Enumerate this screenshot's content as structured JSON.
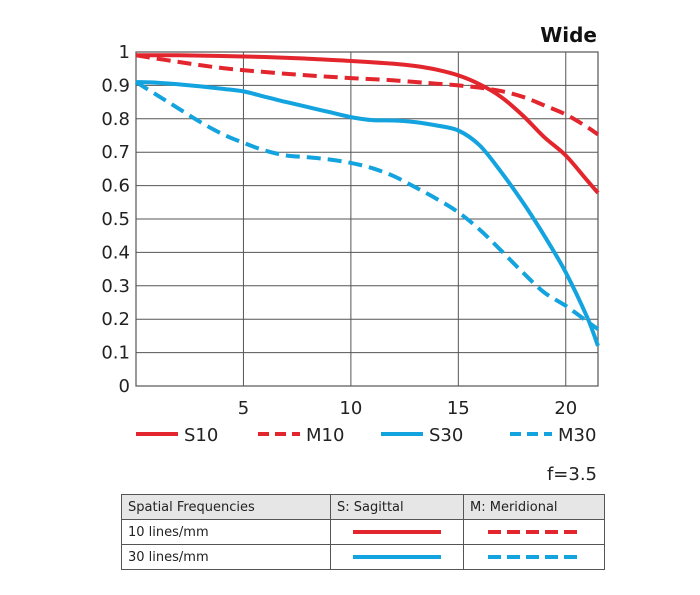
{
  "chart_data": {
    "type": "line",
    "title": "Wide",
    "xlim": [
      0,
      21.5
    ],
    "ylim": [
      0,
      1
    ],
    "x_ticks": [
      "5",
      "10",
      "15",
      "20"
    ],
    "y_ticks": [
      "0",
      "0.1",
      "0.2",
      "0.3",
      "0.4",
      "0.5",
      "0.6",
      "0.7",
      "0.8",
      "0.9",
      "1"
    ],
    "grid": true,
    "legend_position": "bottom",
    "aperture_label": "f=3.5",
    "series": [
      {
        "name": "S10",
        "color": "#e3262d",
        "dash": false,
        "points": [
          [
            0,
            0.99
          ],
          [
            2,
            0.99
          ],
          [
            4,
            0.988
          ],
          [
            6,
            0.985
          ],
          [
            8,
            0.98
          ],
          [
            10,
            0.973
          ],
          [
            12,
            0.965
          ],
          [
            13,
            0.958
          ],
          [
            14,
            0.947
          ],
          [
            15,
            0.93
          ],
          [
            16,
            0.903
          ],
          [
            17,
            0.865
          ],
          [
            18,
            0.81
          ],
          [
            19,
            0.745
          ],
          [
            20,
            0.69
          ],
          [
            21,
            0.615
          ],
          [
            21.5,
            0.578
          ]
        ]
      },
      {
        "name": "M10",
        "color": "#e3262d",
        "dash": true,
        "points": [
          [
            0,
            0.99
          ],
          [
            2,
            0.97
          ],
          [
            4,
            0.952
          ],
          [
            6,
            0.94
          ],
          [
            8,
            0.93
          ],
          [
            10,
            0.922
          ],
          [
            12,
            0.915
          ],
          [
            14,
            0.905
          ],
          [
            15,
            0.9
          ],
          [
            16,
            0.893
          ],
          [
            17,
            0.883
          ],
          [
            18,
            0.866
          ],
          [
            19,
            0.84
          ],
          [
            20,
            0.813
          ],
          [
            21,
            0.775
          ],
          [
            21.5,
            0.753
          ]
        ]
      },
      {
        "name": "S30",
        "color": "#13a3df",
        "dash": false,
        "points": [
          [
            0,
            0.91
          ],
          [
            1,
            0.908
          ],
          [
            2,
            0.903
          ],
          [
            3,
            0.897
          ],
          [
            4,
            0.89
          ],
          [
            5,
            0.882
          ],
          [
            6,
            0.866
          ],
          [
            7,
            0.85
          ],
          [
            8,
            0.835
          ],
          [
            9,
            0.82
          ],
          [
            10,
            0.805
          ],
          [
            11,
            0.796
          ],
          [
            12,
            0.795
          ],
          [
            13,
            0.79
          ],
          [
            14,
            0.78
          ],
          [
            15,
            0.765
          ],
          [
            16,
            0.72
          ],
          [
            17,
            0.64
          ],
          [
            18,
            0.55
          ],
          [
            19,
            0.45
          ],
          [
            20,
            0.34
          ],
          [
            21,
            0.205
          ],
          [
            21.5,
            0.12
          ]
        ]
      },
      {
        "name": "M30",
        "color": "#13a3df",
        "dash": true,
        "points": [
          [
            0,
            0.91
          ],
          [
            1,
            0.87
          ],
          [
            2,
            0.83
          ],
          [
            3,
            0.79
          ],
          [
            4,
            0.755
          ],
          [
            5,
            0.728
          ],
          [
            6,
            0.705
          ],
          [
            7,
            0.69
          ],
          [
            8,
            0.685
          ],
          [
            9,
            0.678
          ],
          [
            10,
            0.668
          ],
          [
            11,
            0.652
          ],
          [
            12,
            0.628
          ],
          [
            13,
            0.595
          ],
          [
            14,
            0.56
          ],
          [
            15,
            0.52
          ],
          [
            16,
            0.468
          ],
          [
            17,
            0.405
          ],
          [
            18,
            0.34
          ],
          [
            19,
            0.28
          ],
          [
            20,
            0.24
          ],
          [
            21,
            0.193
          ],
          [
            21.5,
            0.17
          ]
        ]
      }
    ]
  },
  "table": {
    "headers": [
      "Spatial Frequencies",
      "S: Sagittal",
      "M: Meridional"
    ],
    "rows": [
      {
        "label": "10 lines/mm",
        "color": "#e3262d"
      },
      {
        "label": "30 lines/mm",
        "color": "#13a3df"
      }
    ]
  }
}
